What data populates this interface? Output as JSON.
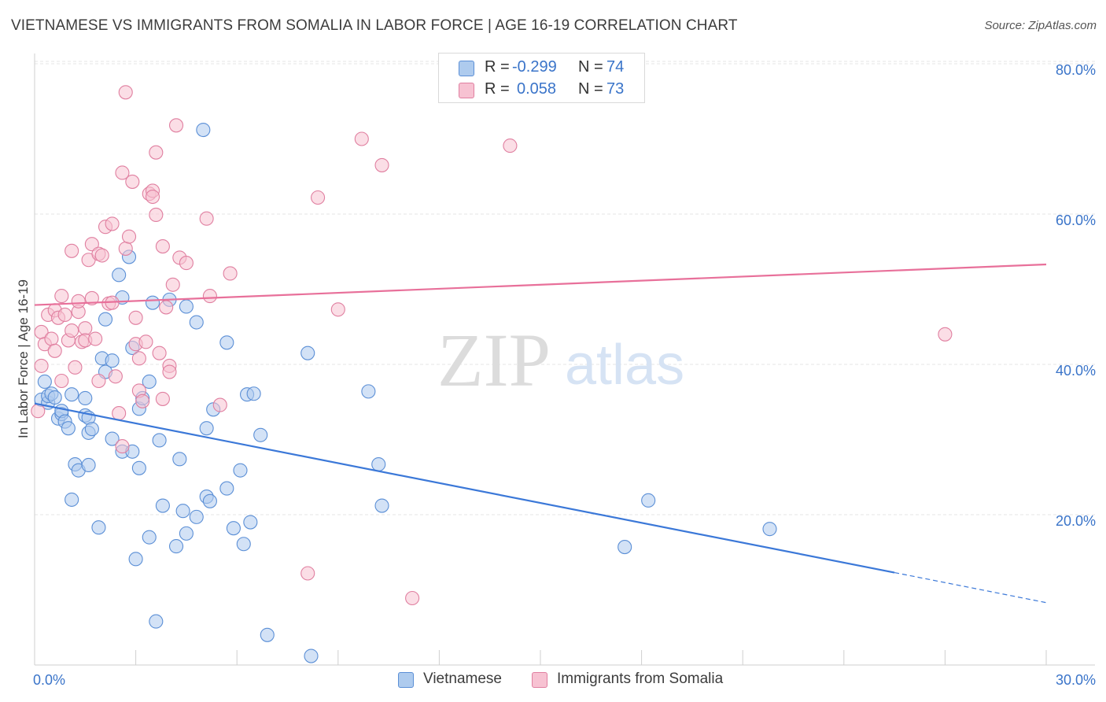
{
  "title": "VIETNAMESE VS IMMIGRANTS FROM SOMALIA IN LABOR FORCE | AGE 16-19 CORRELATION CHART",
  "source": "Source: ZipAtlas.com",
  "watermark": {
    "zip": "ZIP",
    "atlas": "atlas"
  },
  "stats": [
    {
      "r_label": "R =",
      "r_value": "-0.299",
      "n_label": "N =",
      "n_value": "74",
      "fill": "#aecbee",
      "stroke": "#5b8fd6"
    },
    {
      "r_label": "R =",
      "r_value": "0.058",
      "n_label": "N =",
      "n_value": "73",
      "fill": "#f7c2d2",
      "stroke": "#e07fa0"
    }
  ],
  "legend": [
    {
      "label": "Vietnamese",
      "fill": "#aecbee",
      "stroke": "#5b8fd6"
    },
    {
      "label": "Immigrants from Somalia",
      "fill": "#f7c2d2",
      "stroke": "#e07fa0"
    }
  ],
  "chart_data": {
    "type": "scatter",
    "title": "VIETNAMESE VS IMMIGRANTS FROM SOMALIA IN LABOR FORCE | AGE 16-19 CORRELATION CHART",
    "xlabel": "",
    "ylabel": "In Labor Force | Age 16-19",
    "xlim": [
      0,
      30
    ],
    "ylim": [
      0,
      82
    ],
    "x_tick_labels": [
      {
        "value": 0,
        "label": "0.0%"
      },
      {
        "value": 30,
        "label": "30.0%"
      }
    ],
    "y_tick_labels": [
      {
        "value": 20,
        "label": "20.0%"
      },
      {
        "value": 40,
        "label": "40.0%"
      },
      {
        "value": 60,
        "label": "60.0%"
      },
      {
        "value": 80,
        "label": "80.0%"
      }
    ],
    "x_minor_ticks": [
      3,
      6,
      9,
      12,
      15,
      18,
      21,
      24,
      27,
      30
    ],
    "grid": true,
    "colors": {
      "blue": "#3b78d8",
      "pink": "#e8709a",
      "axis_label": "#3a74c9"
    },
    "series": [
      {
        "name": "Vietnamese",
        "fill": "#aecbee",
        "stroke": "#5b8fd6",
        "trend": {
          "x0": 0,
          "y0": 34.8,
          "x1": 25.5,
          "y1": 12.3,
          "dash_to_x": 30,
          "dash_to_y": 8.3,
          "color": "#3b78d8"
        },
        "points": [
          [
            0.2,
            35.3
          ],
          [
            0.3,
            37.7
          ],
          [
            0.4,
            34.9
          ],
          [
            0.4,
            35.8
          ],
          [
            0.5,
            36.1
          ],
          [
            0.6,
            35.6
          ],
          [
            0.7,
            32.8
          ],
          [
            0.8,
            33.4
          ],
          [
            0.8,
            33.8
          ],
          [
            0.9,
            32.4
          ],
          [
            1.0,
            31.5
          ],
          [
            1.1,
            36.0
          ],
          [
            1.2,
            26.7
          ],
          [
            1.3,
            25.9
          ],
          [
            1.1,
            22.0
          ],
          [
            1.5,
            33.2
          ],
          [
            1.6,
            32.9
          ],
          [
            1.6,
            26.6
          ],
          [
            1.6,
            30.9
          ],
          [
            1.7,
            31.4
          ],
          [
            1.9,
            18.3
          ],
          [
            2.0,
            40.8
          ],
          [
            2.1,
            39.0
          ],
          [
            2.1,
            46.0
          ],
          [
            2.3,
            40.5
          ],
          [
            2.3,
            30.1
          ],
          [
            2.5,
            51.9
          ],
          [
            2.6,
            48.9
          ],
          [
            2.6,
            28.4
          ],
          [
            2.8,
            54.3
          ],
          [
            2.9,
            28.4
          ],
          [
            2.9,
            42.2
          ],
          [
            3.0,
            14.1
          ],
          [
            3.1,
            34.1
          ],
          [
            3.1,
            26.2
          ],
          [
            3.2,
            35.5
          ],
          [
            3.4,
            37.7
          ],
          [
            3.4,
            17.0
          ],
          [
            3.5,
            48.2
          ],
          [
            3.6,
            5.8
          ],
          [
            3.7,
            29.9
          ],
          [
            3.8,
            21.2
          ],
          [
            4.0,
            48.6
          ],
          [
            4.2,
            15.8
          ],
          [
            4.3,
            27.4
          ],
          [
            4.4,
            20.5
          ],
          [
            4.5,
            17.5
          ],
          [
            4.5,
            47.7
          ],
          [
            4.8,
            19.7
          ],
          [
            4.8,
            45.6
          ],
          [
            5.0,
            71.2
          ],
          [
            5.1,
            31.5
          ],
          [
            5.1,
            22.4
          ],
          [
            5.2,
            21.8
          ],
          [
            5.3,
            34.0
          ],
          [
            5.7,
            23.5
          ],
          [
            5.7,
            42.9
          ],
          [
            5.9,
            18.2
          ],
          [
            6.1,
            25.9
          ],
          [
            6.2,
            16.1
          ],
          [
            6.3,
            36.0
          ],
          [
            6.4,
            19.0
          ],
          [
            6.5,
            36.1
          ],
          [
            6.7,
            30.6
          ],
          [
            6.9,
            4.0
          ],
          [
            8.1,
            41.5
          ],
          [
            8.2,
            1.2
          ],
          [
            9.9,
            36.4
          ],
          [
            10.2,
            26.7
          ],
          [
            10.3,
            21.2
          ],
          [
            17.5,
            15.7
          ],
          [
            18.2,
            21.9
          ],
          [
            21.8,
            18.1
          ],
          [
            1.5,
            35.5
          ]
        ]
      },
      {
        "name": "Immigrants from Somalia",
        "fill": "#f7c2d2",
        "stroke": "#e07fa0",
        "trend": {
          "x0": 0,
          "y0": 47.9,
          "x1": 30,
          "y1": 53.3,
          "color": "#e8709a"
        },
        "points": [
          [
            0.1,
            33.8
          ],
          [
            0.2,
            39.8
          ],
          [
            0.2,
            44.3
          ],
          [
            0.3,
            42.7
          ],
          [
            0.4,
            46.6
          ],
          [
            0.5,
            43.4
          ],
          [
            0.6,
            41.8
          ],
          [
            0.6,
            47.2
          ],
          [
            0.7,
            46.2
          ],
          [
            0.8,
            37.8
          ],
          [
            0.8,
            49.1
          ],
          [
            0.9,
            46.6
          ],
          [
            1.0,
            43.2
          ],
          [
            1.1,
            55.1
          ],
          [
            1.1,
            44.5
          ],
          [
            1.2,
            39.6
          ],
          [
            1.3,
            47.0
          ],
          [
            1.3,
            48.4
          ],
          [
            1.4,
            43.0
          ],
          [
            1.5,
            44.8
          ],
          [
            1.5,
            43.2
          ],
          [
            1.6,
            53.9
          ],
          [
            1.7,
            48.8
          ],
          [
            1.7,
            56.0
          ],
          [
            1.8,
            43.4
          ],
          [
            1.9,
            37.8
          ],
          [
            1.9,
            54.7
          ],
          [
            2.0,
            54.5
          ],
          [
            2.1,
            58.3
          ],
          [
            2.2,
            48.1
          ],
          [
            2.3,
            58.7
          ],
          [
            2.3,
            48.2
          ],
          [
            2.4,
            38.4
          ],
          [
            2.5,
            33.5
          ],
          [
            2.6,
            29.1
          ],
          [
            2.6,
            65.5
          ],
          [
            2.7,
            55.4
          ],
          [
            2.7,
            76.2
          ],
          [
            2.8,
            57.0
          ],
          [
            2.9,
            64.3
          ],
          [
            3.0,
            42.7
          ],
          [
            3.0,
            46.2
          ],
          [
            3.1,
            36.5
          ],
          [
            3.2,
            35.1
          ],
          [
            3.3,
            43.0
          ],
          [
            3.4,
            62.7
          ],
          [
            3.5,
            63.1
          ],
          [
            3.5,
            62.3
          ],
          [
            3.6,
            68.2
          ],
          [
            3.6,
            59.9
          ],
          [
            3.7,
            41.5
          ],
          [
            3.8,
            55.7
          ],
          [
            3.8,
            35.4
          ],
          [
            3.9,
            47.6
          ],
          [
            4.0,
            39.8
          ],
          [
            4.0,
            39.0
          ],
          [
            4.1,
            50.6
          ],
          [
            4.2,
            71.8
          ],
          [
            4.3,
            54.2
          ],
          [
            4.5,
            53.5
          ],
          [
            5.1,
            59.4
          ],
          [
            5.2,
            49.1
          ],
          [
            5.5,
            34.6
          ],
          [
            5.8,
            52.1
          ],
          [
            8.1,
            12.2
          ],
          [
            8.4,
            62.2
          ],
          [
            9.0,
            47.3
          ],
          [
            9.7,
            70.0
          ],
          [
            10.3,
            66.5
          ],
          [
            11.2,
            8.9
          ],
          [
            14.1,
            69.1
          ],
          [
            27.0,
            44.0
          ],
          [
            3.1,
            40.8
          ]
        ]
      }
    ]
  }
}
